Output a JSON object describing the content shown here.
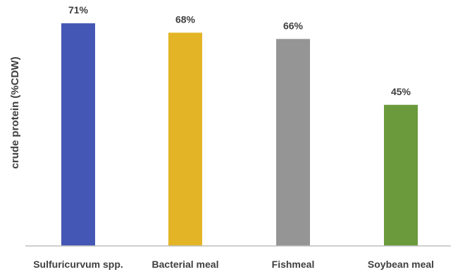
{
  "chart_data": {
    "type": "bar",
    "title": "",
    "xlabel": "",
    "ylabel": "crude protein (%CDW)",
    "ylim": [
      0,
      75
    ],
    "grid": false,
    "legend": "none",
    "categories": [
      "Sulfuricurvum spp.",
      "Bacterial meal",
      "Fishmeal",
      "Soybean meal"
    ],
    "values": [
      71,
      68,
      66,
      45
    ],
    "data_labels": [
      "71%",
      "68%",
      "66%",
      "45%"
    ],
    "colors": [
      "#4557b5",
      "#e3b526",
      "#959595",
      "#6a9a3c"
    ],
    "axis_color": "#bfbfbf"
  }
}
